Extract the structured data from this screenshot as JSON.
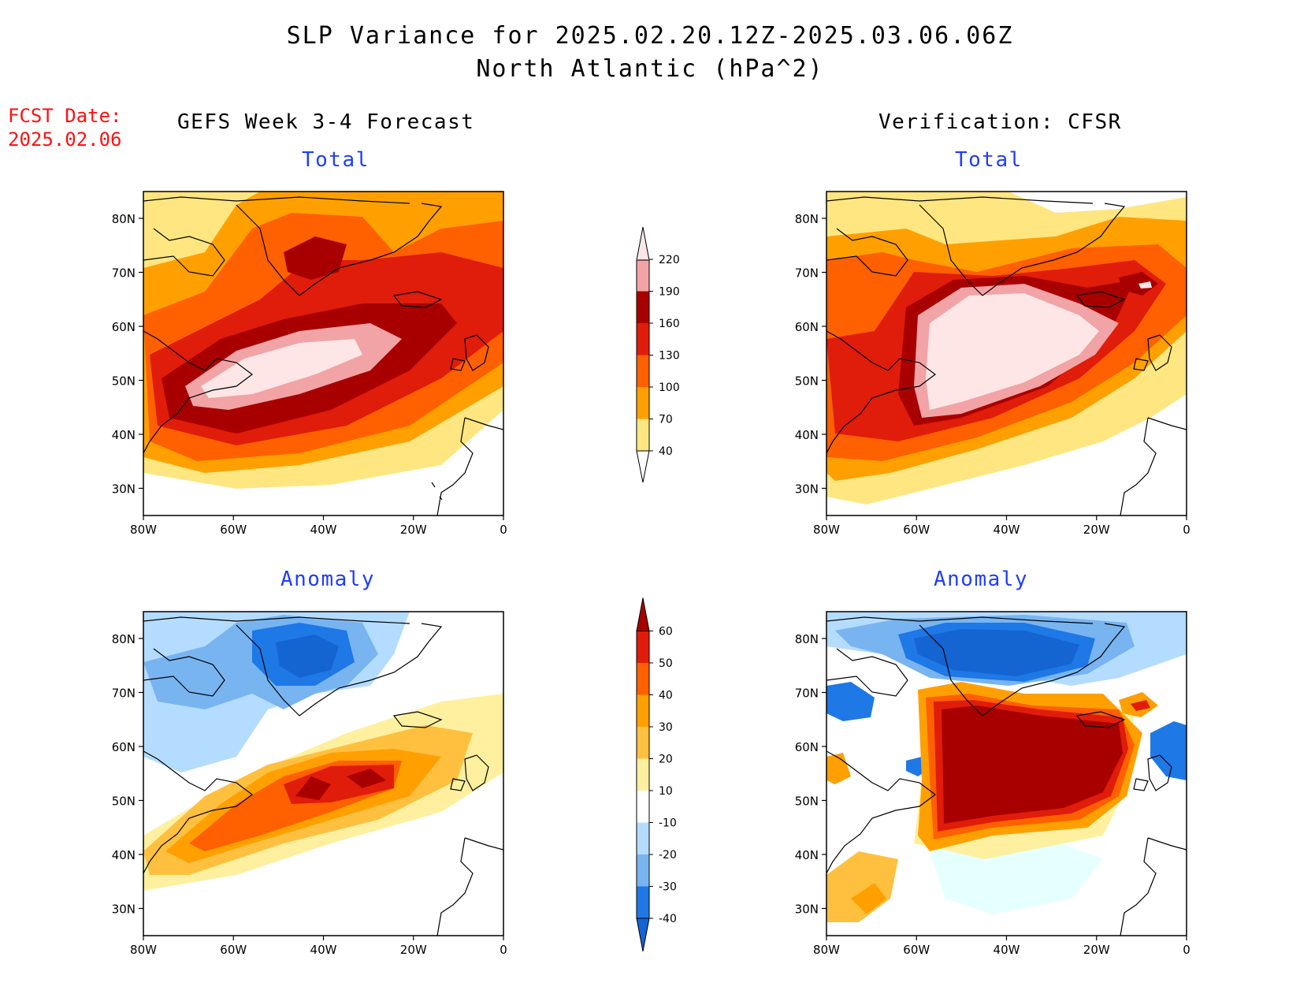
{
  "header": {
    "title_line1": "SLP Variance for 2025.02.20.12Z-2025.03.06.06Z",
    "title_line2": "North Atlantic (hPa^2)"
  },
  "fcst_date": {
    "label": "FCST Date:",
    "value": "2025.02.06"
  },
  "columns": {
    "left": "GEFS Week 3-4 Forecast",
    "right": "Verification: CFSR"
  },
  "panels": {
    "total_label": "Total",
    "anomaly_label": "Anomaly"
  },
  "axes": {
    "lat_ticks": [
      "80N",
      "70N",
      "60N",
      "50N",
      "40N",
      "30N"
    ],
    "lon_ticks": [
      "80W",
      "60W",
      "40W",
      "20W",
      "0"
    ]
  },
  "colorbars": {
    "total": {
      "levels": [
        "40",
        "70",
        "100",
        "130",
        "160",
        "190",
        "220"
      ],
      "colors": [
        "#ffe680",
        "#ffa000",
        "#ff6000",
        "#e01c0a",
        "#a80000",
        "#f2a3a6",
        "#ffe6e6"
      ]
    },
    "anomaly": {
      "levels": [
        "-40",
        "-30",
        "-20",
        "-10",
        "10",
        "20",
        "30",
        "40",
        "50",
        "60"
      ],
      "colors": [
        "#1464d2",
        "#1e78e6",
        "#78b4f0",
        "#b4dcff",
        "#e6ffff",
        "#ffffff",
        "#fff0a0",
        "#ffc040",
        "#ffa000",
        "#ff6000",
        "#e01c0a",
        "#a80000"
      ]
    }
  }
}
